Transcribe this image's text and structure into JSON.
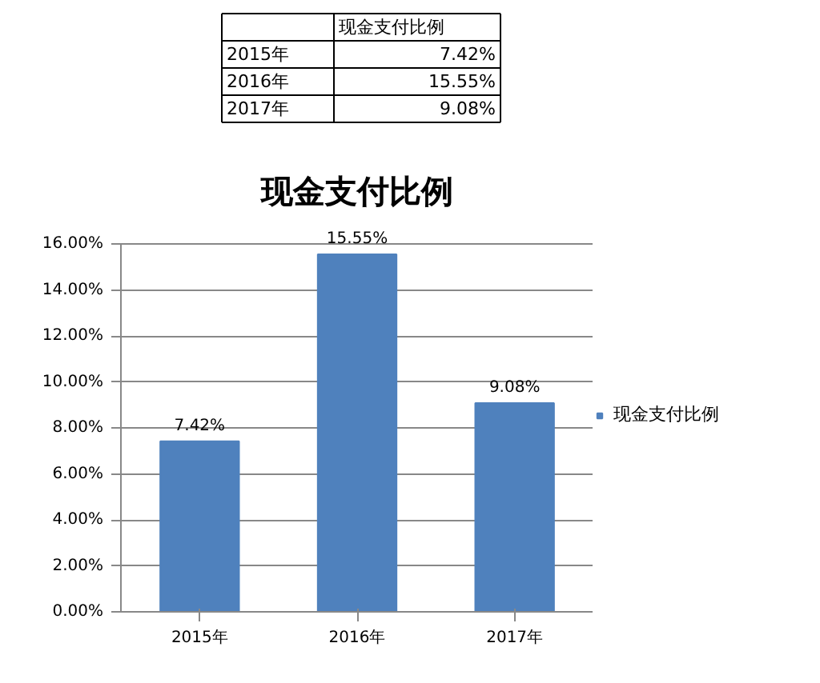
{
  "chart_data": {
    "type": "bar",
    "title": "现金支付比例",
    "categories": [
      "2015年",
      "2016年",
      "2017年"
    ],
    "series": [
      {
        "name": "现金支付比例",
        "color": "#4f81bd",
        "values": [
          7.42,
          15.55,
          9.08
        ],
        "value_labels": [
          "7.42%",
          "15.55%",
          "9.08%"
        ]
      }
    ],
    "ylim": [
      0,
      16
    ],
    "yticks": [
      {
        "value": 0,
        "label": "0.00%"
      },
      {
        "value": 2,
        "label": "2.00%"
      },
      {
        "value": 4,
        "label": "4.00%"
      },
      {
        "value": 6,
        "label": "6.00%"
      },
      {
        "value": 8,
        "label": "8.00%"
      },
      {
        "value": 10,
        "label": "10.00%"
      },
      {
        "value": 12,
        "label": "12.00%"
      },
      {
        "value": 14,
        "label": "14.00%"
      },
      {
        "value": 16,
        "label": "16.00%"
      }
    ],
    "grid": "y",
    "legend": "right"
  }
}
